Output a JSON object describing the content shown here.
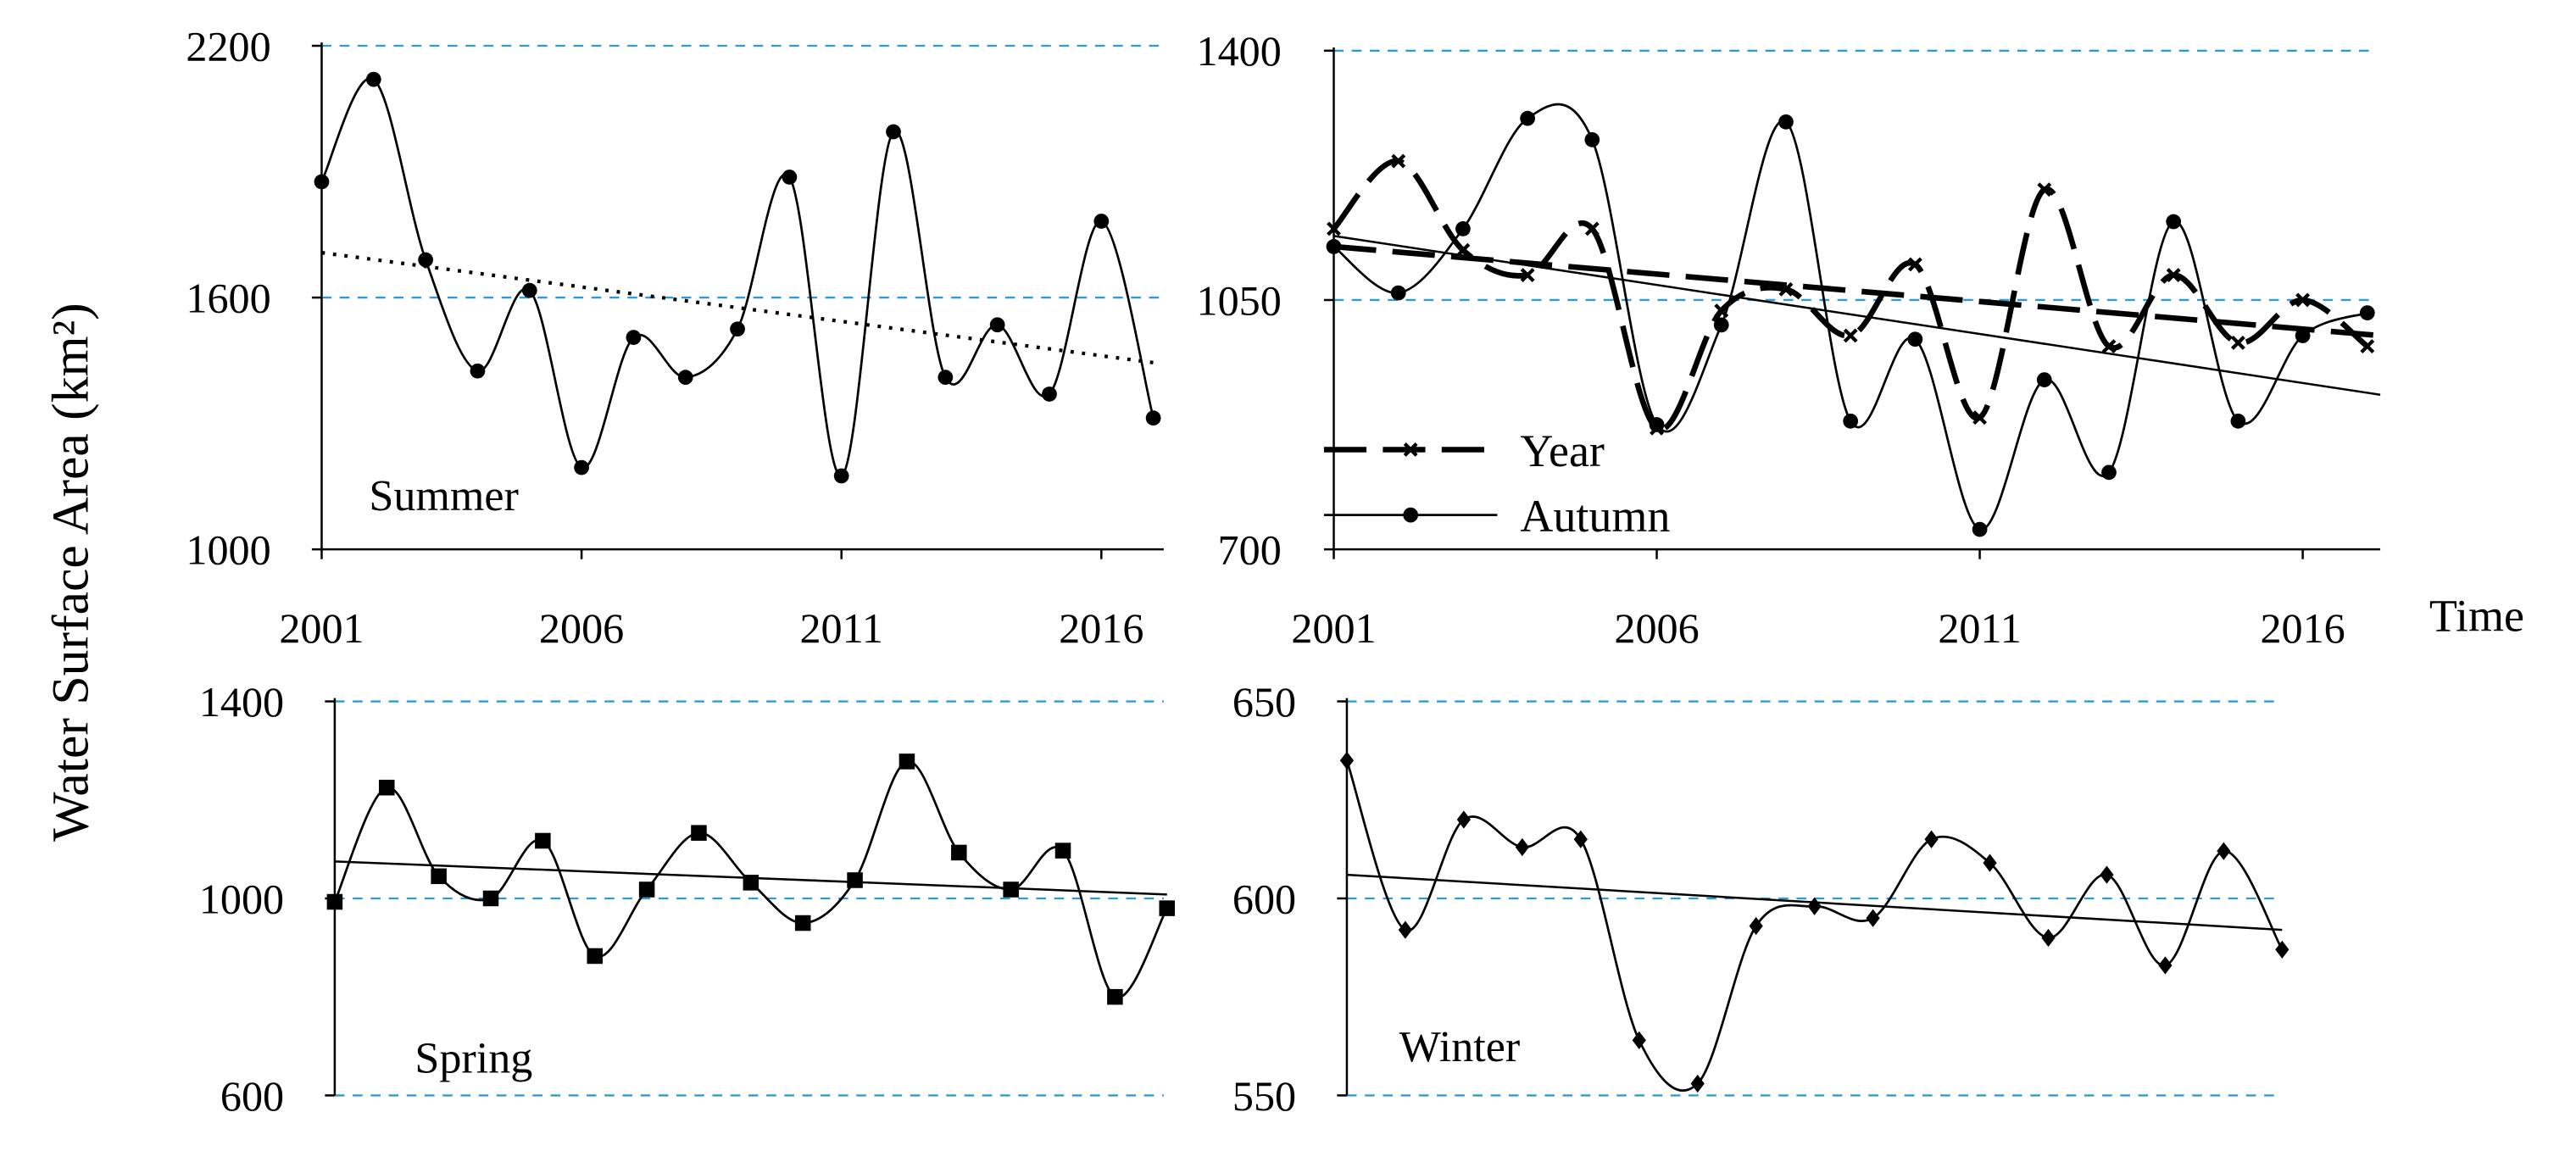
{
  "figure": {
    "y_axis_title": "Water Surface Area (km²)",
    "x_axis_title": "Time"
  },
  "chart_data": [
    {
      "id": "summer",
      "type": "line",
      "panel_label": "Summer",
      "x": [
        2001,
        2002,
        2003,
        2004,
        2005,
        2006,
        2007,
        2008,
        2009,
        2010,
        2011,
        2012,
        2013,
        2014,
        2015,
        2016,
        2017
      ],
      "series": [
        {
          "name": "Summer",
          "marker": "circle",
          "line": "smooth",
          "values": [
            1876,
            2120,
            1690,
            1425,
            1617,
            1195,
            1505,
            1410,
            1525,
            1887,
            1175,
            1995,
            1410,
            1535,
            1370,
            1782,
            1313
          ]
        }
      ],
      "trend": {
        "style": "dotted",
        "start": [
          2001,
          1707
        ],
        "end": [
          2017,
          1445
        ]
      },
      "xticks": [
        2001,
        2006,
        2011,
        2016
      ],
      "xtick_labels": [
        "2001",
        "2006",
        "2011",
        "2016"
      ],
      "yticks": [
        1000,
        1600,
        2200
      ],
      "ytick_labels": [
        "1000",
        "1600",
        "2200"
      ],
      "ylim": [
        1000,
        2200
      ],
      "xlim": [
        2001,
        2017.2
      ],
      "grid_y": [
        1600,
        2200
      ]
    },
    {
      "id": "autumn",
      "type": "line",
      "panel_label": "",
      "x": [
        2001,
        2002,
        2003,
        2004,
        2005,
        2006,
        2007,
        2008,
        2009,
        2010,
        2011,
        2012,
        2013,
        2014,
        2015,
        2016,
        2017
      ],
      "series": [
        {
          "name": "Autumn",
          "marker": "circle",
          "line": "smooth",
          "values": [
            1125,
            1060,
            1150,
            1305,
            1275,
            875,
            1015,
            1300,
            880,
            995,
            728,
            938,
            808,
            1160,
            880,
            1000,
            1032
          ]
        },
        {
          "name": "Year",
          "marker": "x",
          "line": "dashed",
          "values": [
            1150,
            1245,
            1120,
            1085,
            1150,
            870,
            1035,
            1065,
            1000,
            1100,
            885,
            1205,
            985,
            1085,
            990,
            1050,
            985
          ]
        }
      ],
      "trend_lines": [
        {
          "series": "Autumn",
          "style": "solid",
          "start": [
            2001,
            1140
          ],
          "end": [
            2017.2,
            917
          ]
        },
        {
          "series": "Year",
          "style": "dashed",
          "start": [
            2001,
            1125
          ],
          "end": [
            2017.2,
            1000
          ]
        }
      ],
      "legend": [
        {
          "label": "Year",
          "style": "dashed"
        },
        {
          "label": "Autumn",
          "style": "solid-circle"
        }
      ],
      "legend_position": "bottom-left",
      "xticks": [
        2001,
        2006,
        2011,
        2016
      ],
      "xtick_labels": [
        "2001",
        "2006",
        "2011",
        "2016"
      ],
      "yticks": [
        700,
        1050,
        1400
      ],
      "ytick_labels": [
        "700",
        "1050",
        "1400"
      ],
      "ylim": [
        700,
        1400
      ],
      "xlim": [
        2001,
        2017.2
      ],
      "grid_y": [
        1050,
        1400
      ]
    },
    {
      "id": "spring",
      "type": "line",
      "panel_label": "Spring",
      "x": [
        2001,
        2002,
        2003,
        2004,
        2005,
        2006,
        2007,
        2008,
        2009,
        2010,
        2011,
        2012,
        2013,
        2014,
        2015,
        2016,
        2017
      ],
      "series": [
        {
          "name": "Spring",
          "marker": "square",
          "line": "smooth",
          "values": [
            993,
            1225,
            1045,
            1000,
            1117,
            883,
            1018,
            1133,
            1032,
            950,
            1037,
            1278,
            1093,
            1018,
            1097,
            800,
            980
          ]
        }
      ],
      "trend": {
        "style": "solid",
        "start": [
          2001,
          1075
        ],
        "end": [
          2017,
          1008
        ]
      },
      "yticks": [
        600,
        1000,
        1400
      ],
      "ytick_labels": [
        "600",
        "1000",
        "1400"
      ],
      "ylim": [
        600,
        1400
      ],
      "xlim": [
        2001,
        2017
      ],
      "grid_y": [
        600,
        1000,
        1400
      ]
    },
    {
      "id": "winter",
      "type": "line",
      "panel_label": "Winter",
      "x": [
        2001,
        2002,
        2003,
        2004,
        2005,
        2006,
        2007,
        2008,
        2009,
        2010,
        2011,
        2012,
        2013,
        2014,
        2015,
        2016,
        2017
      ],
      "series": [
        {
          "name": "Winter",
          "marker": "diamond",
          "line": "smooth",
          "values": [
            635,
            592,
            620,
            613,
            615,
            564,
            553,
            593,
            598,
            595,
            615,
            609,
            590,
            606,
            583,
            612,
            587
          ]
        }
      ],
      "trend": {
        "style": "solid",
        "start": [
          2001,
          606
        ],
        "end": [
          2017,
          592
        ]
      },
      "yticks": [
        550,
        600,
        650
      ],
      "ytick_labels": [
        "550",
        "600",
        "650"
      ],
      "ylim": [
        550,
        650
      ],
      "xlim": [
        2001,
        2017
      ],
      "grid_y": [
        550,
        600,
        650
      ]
    }
  ]
}
